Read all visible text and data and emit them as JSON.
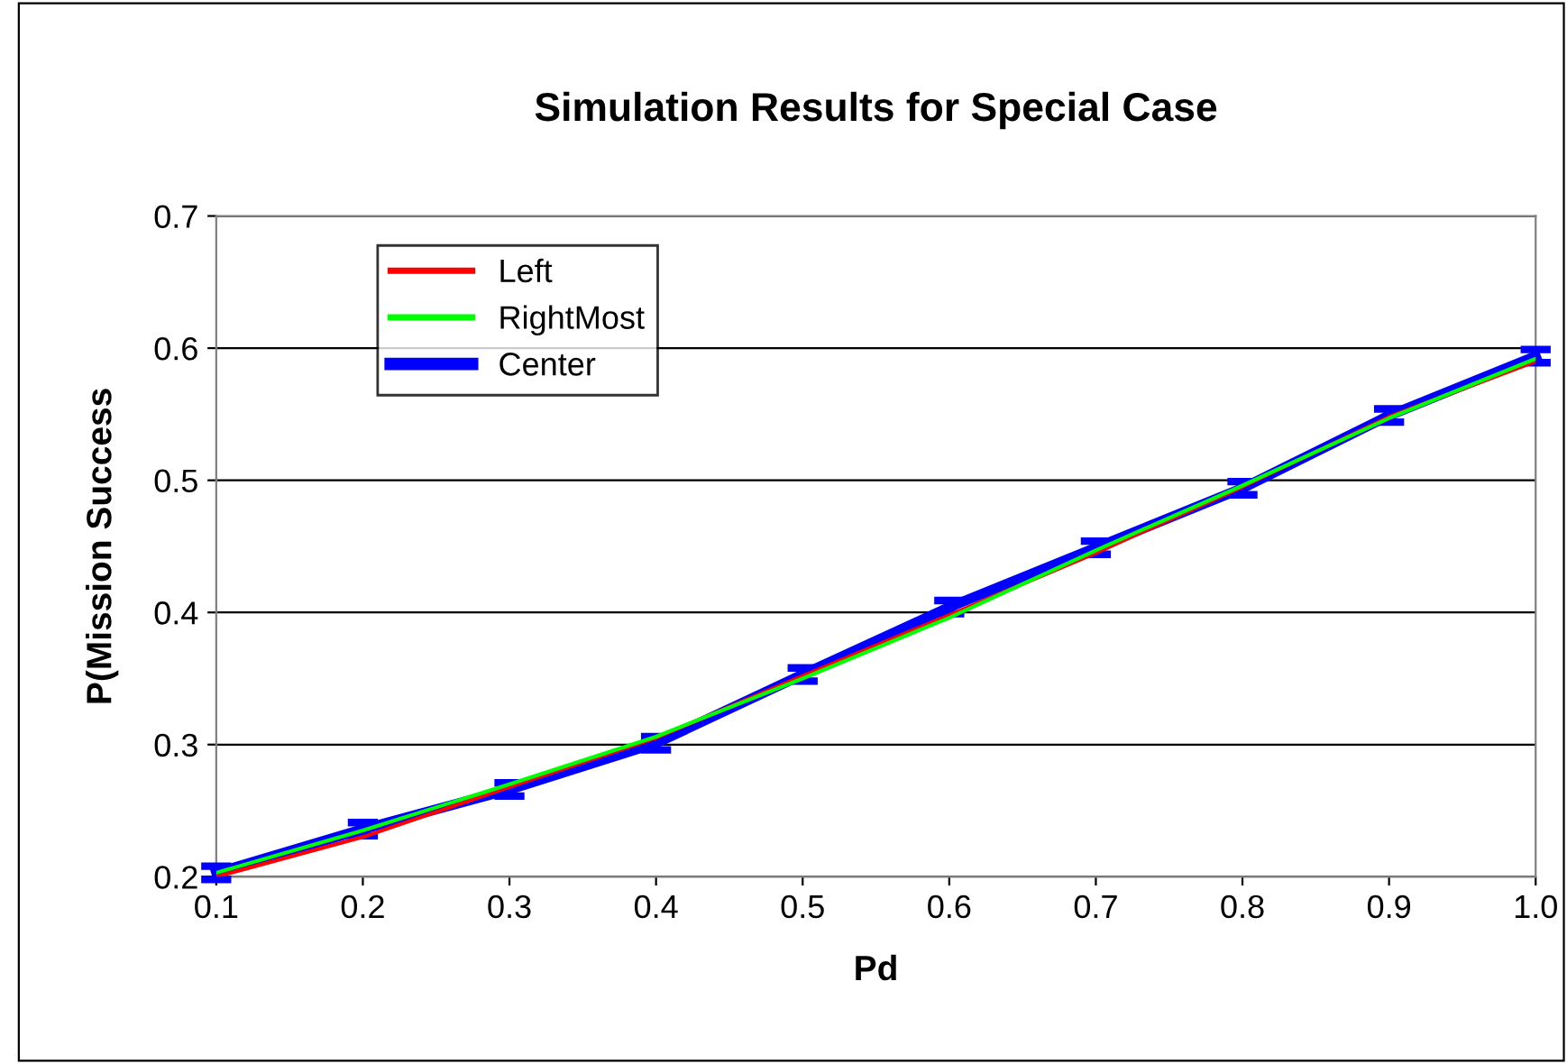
{
  "chart_data": {
    "type": "line",
    "title": "Simulation Results for Special Case",
    "xlabel": "Pd",
    "ylabel": "P(Mission Success",
    "x": [
      0.1,
      0.2,
      0.3,
      0.4,
      0.5,
      0.6,
      0.7,
      0.8,
      0.9,
      1.0
    ],
    "series": [
      {
        "name": "Left",
        "color": "#ff0000",
        "values": [
          0.2,
          0.23,
          0.268,
          0.305,
          0.352,
          0.398,
          0.445,
          0.495,
          0.548,
          0.59
        ]
      },
      {
        "name": "RightMost",
        "color": "#00ff00",
        "values": [
          0.203,
          0.235,
          0.27,
          0.306,
          0.35,
          0.396,
          0.447,
          0.496,
          0.547,
          0.592
        ]
      },
      {
        "name": "Center",
        "color": "#0000ff",
        "values": [
          0.203,
          0.236,
          0.266,
          0.301,
          0.353,
          0.404,
          0.449,
          0.494,
          0.549,
          0.594
        ],
        "errors": [
          0.005,
          0.005,
          0.005,
          0.005,
          0.005,
          0.005,
          0.005,
          0.005,
          0.005,
          0.005
        ]
      }
    ],
    "xlim": [
      0.1,
      1.0
    ],
    "xticks": [
      {
        "value": 0.1,
        "label": "0.1"
      },
      {
        "value": 0.2,
        "label": "0.2"
      },
      {
        "value": 0.3,
        "label": "0.3"
      },
      {
        "value": 0.4,
        "label": "0.4"
      },
      {
        "value": 0.5,
        "label": "0.5"
      },
      {
        "value": 0.6,
        "label": "0.6"
      },
      {
        "value": 0.7,
        "label": "0.7"
      },
      {
        "value": 0.8,
        "label": "0.8"
      },
      {
        "value": 0.9,
        "label": "0.9"
      },
      {
        "value": 1.0,
        "label": "1.0"
      }
    ],
    "ylim": [
      0.2,
      0.7
    ],
    "yticks": [
      {
        "value": 0.2,
        "label": "0.2"
      },
      {
        "value": 0.3,
        "label": "0.3"
      },
      {
        "value": 0.4,
        "label": "0.4"
      },
      {
        "value": 0.5,
        "label": "0.5"
      },
      {
        "value": 0.6,
        "label": "0.6"
      },
      {
        "value": 0.7,
        "label": "0.7"
      }
    ],
    "grid": "y",
    "legend": "top left",
    "marker": "none",
    "line_style": "solid"
  }
}
